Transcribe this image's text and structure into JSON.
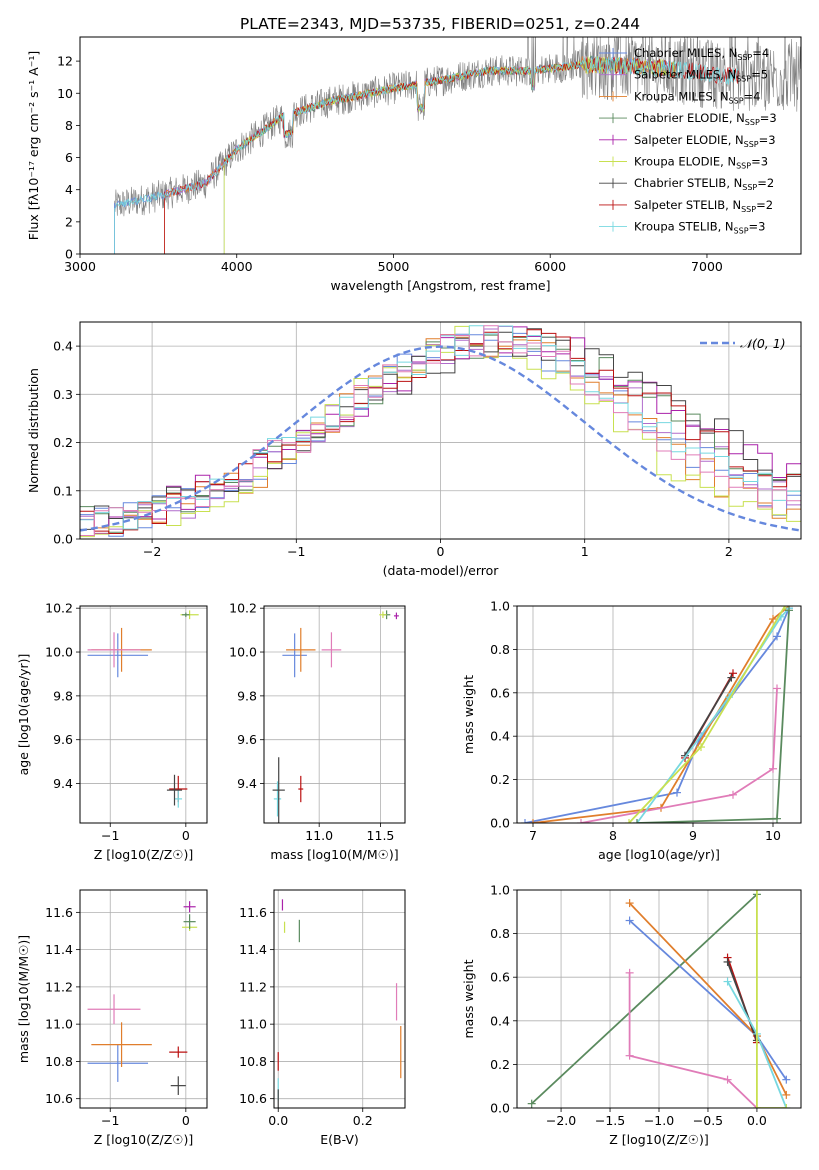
{
  "title": "PLATE=2343, MJD=53735, FIBERID=0251, z=0.244",
  "colors": {
    "Chabrier MILES": "#6688dd",
    "Salpeter MILES": "#b06ccc",
    "Kroupa MILES": "#e07e2c",
    "Chabrier ELODIE": "#5a8a5e",
    "Salpeter ELODIE": "#aa22aa",
    "Kroupa ELODIE": "#c8e050",
    "Chabrier STELIB": "#444444",
    "Salpeter STELIB": "#bb1111",
    "Kroupa STELIB": "#77d8e0",
    "Pink": "#e07cb8",
    "Gray": "#808080"
  },
  "chart_data": [
    {
      "type": "line",
      "panel": "spectrum",
      "xlabel": "wavelength [Angstrom, rest frame]",
      "ylabel": "Flux [fλ10⁻¹⁷ erg cm⁻² s⁻¹ A⁻¹]",
      "xlim": [
        3000,
        7600
      ],
      "ylim": [
        0,
        13.5
      ],
      "xticks": [
        3000,
        4000,
        5000,
        6000,
        7000
      ],
      "yticks": [
        0,
        2,
        4,
        6,
        8,
        10,
        12
      ],
      "legend_placement": "right",
      "legend": [
        {
          "name": "Chabrier MILES",
          "nssp": "4"
        },
        {
          "name": "Salpeter MILES",
          "nssp": "5"
        },
        {
          "name": "Kroupa MILES",
          "nssp": "4"
        },
        {
          "name": "Chabrier ELODIE",
          "nssp": "3"
        },
        {
          "name": "Salpeter ELODIE",
          "nssp": "3"
        },
        {
          "name": "Kroupa ELODIE",
          "nssp": "3"
        },
        {
          "name": "Chabrier STELIB",
          "nssp": "2"
        },
        {
          "name": "Salpeter STELIB",
          "nssp": "2"
        },
        {
          "name": "Kroupa STELIB",
          "nssp": "3"
        }
      ],
      "data_anchor_wavelength": [
        3220,
        3500,
        3800,
        4000,
        4300,
        4600,
        5000,
        5300,
        5600,
        5900,
        6200,
        6500,
        6800,
        7200
      ],
      "data_anchor_flux": [
        3.0,
        3.6,
        4.4,
        6.5,
        8.6,
        9.5,
        10.3,
        10.8,
        11.4,
        11.4,
        11.8,
        11.7,
        11.5,
        11.0
      ]
    },
    {
      "type": "line",
      "panel": "residual-histogram",
      "xlabel": "(data-model)/error",
      "ylabel": "Normed distribution",
      "xlim": [
        -2.5,
        2.5
      ],
      "ylim": [
        0,
        0.45
      ],
      "xticks": [
        -2,
        -1,
        0,
        1,
        2
      ],
      "yticks": [
        0.0,
        0.1,
        0.2,
        0.3,
        0.4
      ],
      "grid": true,
      "legend": [
        {
          "name": "N(0, 1)"
        }
      ],
      "legend_placement": "top-right"
    },
    {
      "type": "scatter",
      "panel": "age-vs-Z",
      "xlabel": "Z [log10(Z/Z☉)]",
      "ylabel": "age  [log10(age/yr)]",
      "xlim": [
        -1.4,
        0.28
      ],
      "ylim": [
        9.22,
        10.21
      ],
      "xticks": [
        -1,
        0
      ],
      "yticks": [
        9.4,
        9.6,
        9.8,
        10.0,
        10.2
      ],
      "grid": true,
      "points": [
        {
          "series": "Chabrier MILES",
          "x": -0.9,
          "y": 9.985,
          "xerr": 0.4,
          "yerr": 0.1
        },
        {
          "series": "Kroupa MILES",
          "x": -0.85,
          "y": 10.01,
          "xerr": 0.4,
          "yerr": 0.1
        },
        {
          "series": "Pink",
          "x": -0.95,
          "y": 10.01,
          "xerr": 0.35,
          "yerr": 0.08
        },
        {
          "series": "Salpeter STELIB",
          "x": -0.1,
          "y": 9.375,
          "xerr": 0.12,
          "yerr": 0.06
        },
        {
          "series": "Kroupa STELIB",
          "x": -0.1,
          "y": 9.33,
          "xerr": 0.05,
          "yerr": 0.04
        },
        {
          "series": "Chabrier STELIB",
          "x": -0.15,
          "y": 9.37,
          "xerr": 0.1,
          "yerr": 0.07
        },
        {
          "series": "Kroupa ELODIE",
          "x": 0.05,
          "y": 10.17,
          "xerr": 0.12,
          "yerr": 0.02
        },
        {
          "series": "Chabrier ELODIE",
          "x": 0.0,
          "y": 10.17,
          "xerr": 0.05,
          "yerr": 0.01
        }
      ]
    },
    {
      "type": "scatter",
      "panel": "age-vs-mass",
      "xlabel": "mass [log10(M/M☉)]",
      "xlim": [
        10.55,
        11.7
      ],
      "ylim": [
        9.22,
        10.21
      ],
      "xticks": [
        11.0,
        11.5
      ],
      "yticks": [
        9.4,
        9.6,
        9.8,
        10.0,
        10.2
      ],
      "grid": true,
      "points": [
        {
          "series": "Chabrier MILES",
          "x": 10.8,
          "y": 9.985,
          "xerr": 0.1,
          "yerr": 0.1
        },
        {
          "series": "Kroupa MILES",
          "x": 10.85,
          "y": 10.01,
          "xerr": 0.12,
          "yerr": 0.1
        },
        {
          "series": "Pink",
          "x": 11.1,
          "y": 10.01,
          "xerr": 0.08,
          "yerr": 0.08
        },
        {
          "series": "Salpeter STELIB",
          "x": 10.85,
          "y": 9.375,
          "xerr": 0.02,
          "yerr": 0.06
        },
        {
          "series": "Kroupa STELIB",
          "x": 10.66,
          "y": 9.33,
          "xerr": 0.03,
          "yerr": 0.08
        },
        {
          "series": "Chabrier STELIB",
          "x": 10.67,
          "y": 9.37,
          "xerr": 0.05,
          "yerr": 0.15
        },
        {
          "series": "Chabrier ELODIE",
          "x": 11.55,
          "y": 10.17,
          "xerr": 0.03,
          "yerr": 0.02
        },
        {
          "series": "Salpeter ELODIE",
          "x": 11.63,
          "y": 10.165,
          "xerr": 0.02,
          "yerr": 0.015
        },
        {
          "series": "Kroupa ELODIE",
          "x": 11.52,
          "y": 10.17,
          "xerr": 0.03,
          "yerr": 0.015
        }
      ]
    },
    {
      "type": "line",
      "panel": "mass-weight-vs-age",
      "xlabel": "age  [log10(age/yr)]",
      "ylabel": "mass weight",
      "xlim": [
        6.8,
        10.35
      ],
      "ylim": [
        0,
        1
      ],
      "xticks": [
        7,
        8,
        9,
        10
      ],
      "yticks": [
        0.0,
        0.2,
        0.4,
        0.6,
        0.8,
        1.0
      ],
      "grid": true,
      "series": [
        {
          "name": "Chabrier MILES",
          "points": [
            [
              6.9,
              0.0
            ],
            [
              8.8,
              0.14
            ],
            [
              9.1,
              0.4
            ],
            [
              10.05,
              0.86
            ],
            [
              10.2,
              0.99
            ]
          ]
        },
        {
          "name": "Kroupa MILES",
          "points": [
            [
              7.0,
              0.0
            ],
            [
              8.6,
              0.07
            ],
            [
              10.0,
              0.94
            ],
            [
              10.2,
              1.0
            ]
          ]
        },
        {
          "name": "Pink",
          "points": [
            [
              7.6,
              0.0
            ],
            [
              9.5,
              0.13
            ],
            [
              10.0,
              0.25
            ],
            [
              10.05,
              0.62
            ]
          ]
        },
        {
          "name": "Salpeter STELIB",
          "points": [
            [
              8.9,
              0.3
            ],
            [
              9.5,
              0.69
            ]
          ]
        },
        {
          "name": "Chabrier STELIB",
          "points": [
            [
              8.9,
              0.31
            ],
            [
              9.48,
              0.67
            ]
          ]
        },
        {
          "name": "Kroupa STELIB",
          "points": [
            [
              8.3,
              0.0
            ],
            [
              9.45,
              0.58
            ],
            [
              10.1,
              0.95
            ],
            [
              10.2,
              0.99
            ]
          ]
        },
        {
          "name": "Kroupa ELODIE",
          "points": [
            [
              8.2,
              0.0
            ],
            [
              9.1,
              0.35
            ],
            [
              10.15,
              1.0
            ]
          ]
        },
        {
          "name": "Chabrier ELODIE",
          "points": [
            [
              8.3,
              0.0
            ],
            [
              10.05,
              0.02
            ],
            [
              10.2,
              0.98
            ]
          ]
        }
      ]
    },
    {
      "type": "scatter",
      "panel": "mass-vs-Z",
      "xlabel": "Z [log10(Z/Z☉)]",
      "ylabel": "mass [log10(M/M☉)]",
      "xlim": [
        -1.4,
        0.28
      ],
      "ylim": [
        10.55,
        11.72
      ],
      "xticks": [
        -1,
        0
      ],
      "yticks": [
        10.6,
        10.8,
        11.0,
        11.2,
        11.4,
        11.6
      ],
      "grid": true,
      "points": [
        {
          "series": "Chabrier MILES",
          "x": -0.9,
          "y": 10.79,
          "xerr": 0.4,
          "yerr": 0.1
        },
        {
          "series": "Kroupa MILES",
          "x": -0.85,
          "y": 10.89,
          "xerr": 0.4,
          "yerr": 0.12
        },
        {
          "series": "Pink",
          "x": -0.95,
          "y": 11.08,
          "xerr": 0.35,
          "yerr": 0.08
        },
        {
          "series": "Salpeter STELIB",
          "x": -0.1,
          "y": 10.85,
          "xerr": 0.12,
          "yerr": 0.03
        },
        {
          "series": "Chabrier STELIB",
          "x": -0.1,
          "y": 10.67,
          "xerr": 0.1,
          "yerr": 0.05
        },
        {
          "series": "Salpeter ELODIE",
          "x": 0.05,
          "y": 11.63,
          "xerr": 0.08,
          "yerr": 0.03
        },
        {
          "series": "Kroupa ELODIE",
          "x": 0.05,
          "y": 11.52,
          "xerr": 0.1,
          "yerr": 0.02
        },
        {
          "series": "Chabrier ELODIE",
          "x": 0.05,
          "y": 11.55,
          "xerr": 0.08,
          "yerr": 0.04
        }
      ]
    },
    {
      "type": "scatter",
      "panel": "mass-vs-EBV",
      "xlabel": "E(B-V)",
      "xlim": [
        -0.01,
        0.3
      ],
      "ylim": [
        10.55,
        11.72
      ],
      "xticks": [
        0.0,
        0.2
      ],
      "yticks": [
        10.6,
        10.8,
        11.0,
        11.2,
        11.4,
        11.6
      ],
      "grid": true,
      "points": [
        {
          "series": "Kroupa MILES",
          "x": 0.29,
          "y": 10.85,
          "yerr": 0.14
        },
        {
          "series": "Pink",
          "x": 0.28,
          "y": 11.12,
          "yerr": 0.1
        },
        {
          "series": "Salpeter STELIB",
          "x": 0.0,
          "y": 10.8,
          "yerr": 0.05
        },
        {
          "series": "Kroupa STELIB",
          "x": 0.0,
          "y": 10.65,
          "yerr": 0.06
        },
        {
          "series": "Chabrier STELIB",
          "x": 0.0,
          "y": 10.6,
          "yerr": 0.05
        },
        {
          "series": "Salpeter ELODIE",
          "x": 0.01,
          "y": 11.64,
          "yerr": 0.03
        },
        {
          "series": "Kroupa ELODIE",
          "x": 0.015,
          "y": 11.52,
          "yerr": 0.03
        },
        {
          "series": "Chabrier ELODIE",
          "x": 0.05,
          "y": 11.5,
          "yerr": 0.06
        }
      ]
    },
    {
      "type": "line",
      "panel": "mass-weight-vs-Z",
      "xlabel": "Z [log10(Z/Z☉)]",
      "ylabel": "mass weight",
      "xlim": [
        -2.45,
        0.45
      ],
      "ylim": [
        0,
        1
      ],
      "xticks": [
        -2.0,
        -1.5,
        -1.0,
        -0.5,
        0.0
      ],
      "yticks": [
        0.0,
        0.2,
        0.4,
        0.6,
        0.8,
        1.0
      ],
      "grid": true,
      "series": [
        {
          "name": "Chabrier ELODIE",
          "points": [
            [
              -2.3,
              0.02
            ],
            [
              0.0,
              0.98
            ]
          ]
        },
        {
          "name": "Chabrier MILES",
          "points": [
            [
              -1.3,
              0.86
            ],
            [
              0.0,
              0.33
            ],
            [
              0.3,
              0.13
            ]
          ]
        },
        {
          "name": "Kroupa MILES",
          "points": [
            [
              -1.3,
              0.94
            ],
            [
              0.0,
              0.33
            ],
            [
              0.3,
              0.06
            ]
          ]
        },
        {
          "name": "Pink",
          "points": [
            [
              -1.3,
              0.62
            ],
            [
              -1.3,
              0.24
            ],
            [
              -0.3,
              0.13
            ],
            [
              0.0,
              0.0
            ]
          ]
        },
        {
          "name": "Salpeter STELIB",
          "points": [
            [
              -0.3,
              0.69
            ],
            [
              0.0,
              0.3
            ]
          ]
        },
        {
          "name": "Chabrier STELIB",
          "points": [
            [
              -0.3,
              0.67
            ],
            [
              0.0,
              0.31
            ]
          ]
        },
        {
          "name": "Kroupa STELIB",
          "points": [
            [
              -0.3,
              0.58
            ],
            [
              0.0,
              0.34
            ],
            [
              0.3,
              0.0
            ]
          ]
        },
        {
          "name": "Kroupa ELODIE",
          "points": [
            [
              0.0,
              1.0
            ],
            [
              0.0,
              0.0
            ],
            [
              0.3,
              0.0
            ]
          ]
        }
      ]
    }
  ]
}
